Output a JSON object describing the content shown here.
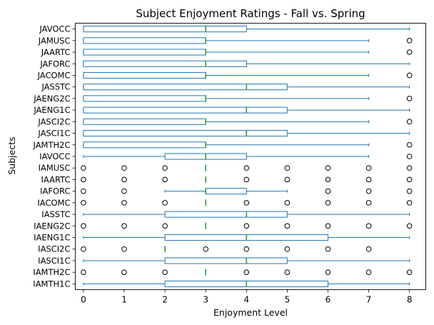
{
  "chart_data": {
    "type": "boxplot",
    "orientation": "horizontal",
    "title": "Subject Enjoyment Ratings - Fall vs. Spring",
    "xlabel": "Enjoyment Level",
    "ylabel": "Subjects",
    "xlim": [
      -0.2,
      8.4
    ],
    "xticks": [
      0,
      1,
      2,
      3,
      4,
      5,
      6,
      7,
      8
    ],
    "grid": false,
    "colors": {
      "box": "#1f77b4",
      "median": "#2ca02c",
      "flier": "#000000"
    },
    "categories": [
      "IAMTH1C",
      "IAMTH2C",
      "IASCI1C",
      "IASCI2C",
      "IAENG1C",
      "IAENG2C",
      "IASSTC",
      "IACOMC",
      "IAFORC",
      "IAARTC",
      "IAMUSC",
      "IAVOCC",
      "JAMTH2C",
      "JASCI1C",
      "JASCI2C",
      "JAENG1C",
      "JAENG2C",
      "JASSTC",
      "JACOMC",
      "JAFORC",
      "JAARTC",
      "JAMUSC",
      "JAVOCC"
    ],
    "boxes": [
      {
        "label": "IAMTH1C",
        "whislo": 0,
        "q1": 2,
        "med": 4,
        "q3": 6,
        "whishi": 8,
        "fliers": []
      },
      {
        "label": "IAMTH2C",
        "whislo": 3,
        "q1": 3,
        "med": 3,
        "q3": 3,
        "whishi": 3,
        "fliers": [
          0,
          1,
          2,
          4,
          5,
          6,
          7,
          8
        ]
      },
      {
        "label": "IASCI1C",
        "whislo": 0,
        "q1": 2,
        "med": 4,
        "q3": 5,
        "whishi": 8,
        "fliers": []
      },
      {
        "label": "IASCI2C",
        "whislo": 2,
        "q1": 2,
        "med": 2,
        "q3": 2,
        "whishi": 2,
        "fliers": [
          0,
          1,
          3,
          4,
          5,
          6,
          7
        ]
      },
      {
        "label": "IAENG1C",
        "whislo": 0,
        "q1": 2,
        "med": 4,
        "q3": 6,
        "whishi": 8,
        "fliers": []
      },
      {
        "label": "IAENG2C",
        "whislo": 3,
        "q1": 3,
        "med": 3,
        "q3": 3,
        "whishi": 3,
        "fliers": [
          0,
          1,
          2,
          4,
          5,
          6,
          7,
          8
        ]
      },
      {
        "label": "IASSTC",
        "whislo": 0,
        "q1": 2,
        "med": 4,
        "q3": 5,
        "whishi": 8,
        "fliers": []
      },
      {
        "label": "IACOMC",
        "whislo": 3,
        "q1": 3,
        "med": 3,
        "q3": 3,
        "whishi": 3,
        "fliers": [
          0,
          1,
          2,
          4,
          5,
          6,
          7,
          8
        ]
      },
      {
        "label": "IAFORC",
        "whislo": 2,
        "q1": 3,
        "med": 3,
        "q3": 4,
        "whishi": 5,
        "fliers": [
          0,
          1,
          6,
          7,
          8
        ]
      },
      {
        "label": "IAARTC",
        "whislo": 3,
        "q1": 3,
        "med": 3,
        "q3": 3,
        "whishi": 3,
        "fliers": [
          0,
          1,
          2,
          4,
          5,
          6,
          7,
          8
        ]
      },
      {
        "label": "IAMUSC",
        "whislo": 3,
        "q1": 3,
        "med": 3,
        "q3": 3,
        "whishi": 3,
        "fliers": [
          0,
          1,
          2,
          4,
          5,
          6,
          7,
          8
        ]
      },
      {
        "label": "IAVOCC",
        "whislo": 0,
        "q1": 2,
        "med": 3,
        "q3": 4,
        "whishi": 7,
        "fliers": [
          8
        ]
      },
      {
        "label": "JAMTH2C",
        "whislo": 0,
        "q1": 0,
        "med": 3,
        "q3": 3,
        "whishi": 7,
        "fliers": [
          8
        ]
      },
      {
        "label": "JASCI1C",
        "whislo": 0,
        "q1": 0,
        "med": 4,
        "q3": 5,
        "whishi": 8,
        "fliers": []
      },
      {
        "label": "JASCI2C",
        "whislo": 0,
        "q1": 0,
        "med": 3,
        "q3": 3,
        "whishi": 7,
        "fliers": [
          8
        ]
      },
      {
        "label": "JAENG1C",
        "whislo": 0,
        "q1": 0,
        "med": 4,
        "q3": 5,
        "whishi": 8,
        "fliers": []
      },
      {
        "label": "JAENG2C",
        "whislo": 0,
        "q1": 0,
        "med": 3,
        "q3": 3,
        "whishi": 7,
        "fliers": [
          8
        ]
      },
      {
        "label": "JASSTC",
        "whislo": 0,
        "q1": 0,
        "med": 4,
        "q3": 5,
        "whishi": 8,
        "fliers": []
      },
      {
        "label": "JACOMC",
        "whislo": 0,
        "q1": 0,
        "med": 3,
        "q3": 3,
        "whishi": 7,
        "fliers": [
          8
        ]
      },
      {
        "label": "JAFORC",
        "whislo": 0,
        "q1": 0,
        "med": 3,
        "q3": 4,
        "whishi": 8,
        "fliers": []
      },
      {
        "label": "JAARTC",
        "whislo": 0,
        "q1": 0,
        "med": 3,
        "q3": 3,
        "whishi": 7,
        "fliers": [
          8
        ]
      },
      {
        "label": "JAMUSC",
        "whislo": 0,
        "q1": 0,
        "med": 3,
        "q3": 3,
        "whishi": 7,
        "fliers": [
          8
        ]
      },
      {
        "label": "JAVOCC",
        "whislo": 0,
        "q1": 0,
        "med": 3,
        "q3": 4,
        "whishi": 8,
        "fliers": []
      }
    ]
  }
}
